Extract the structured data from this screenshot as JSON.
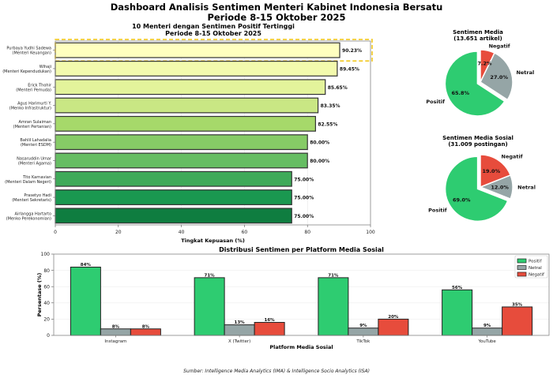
{
  "header": {
    "title_line1": "Dashboard Analisis Sentimen Menteri Kabinet Indonesia Bersatu",
    "title_line2": "Periode 8-15 Oktober 2025"
  },
  "footer": {
    "source": "Sumber: Intelligence Media Analytics (IMA) & Intelligence Socio Analytics (ISA)"
  },
  "chart_data": [
    {
      "type": "bar",
      "orientation": "horizontal",
      "title": "10 Menteri dengan Sentimen Positif Tertinggi",
      "subtitle": "Periode 8-15 Oktober 2025",
      "xlabel": "Tingkat Kepuasan (%)",
      "ylabel": "",
      "xlim": [
        0,
        100
      ],
      "xticks": [
        0,
        20,
        40,
        60,
        80,
        100
      ],
      "grid": true,
      "highlight": "Purbaya Yudhi Sadewa",
      "categories": [
        {
          "name": "Purbaya Yudhi Sadewa",
          "role": "(Menteri Keuangan)",
          "value": 90.23,
          "label": "90.23%",
          "color": "#ffffbf"
        },
        {
          "name": "Wihaji",
          "role": "(Menteri Kependudukan)",
          "value": 89.45,
          "label": "89.45%",
          "color": "#f3faad"
        },
        {
          "name": "Erick Thohir",
          "role": "(Menteri Pemuda)",
          "value": 85.65,
          "label": "85.65%",
          "color": "#e3f39b"
        },
        {
          "name": "Agus Harimurti Y.",
          "role": "(Menko Infrastruktur)",
          "value": 83.35,
          "label": "83.35%",
          "color": "#c9e784"
        },
        {
          "name": "Amran Sulaiman",
          "role": "(Menteri Pertanian)",
          "value": 82.55,
          "label": "82.55%",
          "color": "#a6d96a"
        },
        {
          "name": "Bahlil Lahadalia",
          "role": "(Menteri ESDM)",
          "value": 80.0,
          "label": "80.00%",
          "color": "#86cb66"
        },
        {
          "name": "Nasaruddin Umar",
          "role": "(Menteri Agama)",
          "value": 80.0,
          "label": "80.00%",
          "color": "#66bd63"
        },
        {
          "name": "Tito Karnavian",
          "role": "(Menteri Dalam Negeri)",
          "value": 75.0,
          "label": "75.00%",
          "color": "#3faa59"
        },
        {
          "name": "Prasetyo Hadi",
          "role": "(Menteri Sekretaris)",
          "value": 75.0,
          "label": "75.00%",
          "color": "#1a9850"
        },
        {
          "name": "Airlangga Hartarto",
          "role": "(Menko Perekonomian)",
          "value": 75.0,
          "label": "75.00%",
          "color": "#0f7d40"
        }
      ]
    },
    {
      "type": "pie",
      "title": "Sentimen Media",
      "subtitle": "(13.651 artikel)",
      "slices": [
        {
          "label": "Positif",
          "value": 65.8,
          "pct_label": "65.8%",
          "color": "#2ecc71",
          "explode": true
        },
        {
          "label": "Netral",
          "value": 27.0,
          "pct_label": "27.0%",
          "color": "#95a5a6",
          "explode": false
        },
        {
          "label": "Negatif",
          "value": 7.2,
          "pct_label": "7.2%",
          "color": "#e74c3c",
          "explode": false
        }
      ]
    },
    {
      "type": "pie",
      "title": "Sentimen Media Sosial",
      "subtitle": "(31.009 postingan)",
      "slices": [
        {
          "label": "Positif",
          "value": 69.0,
          "pct_label": "69.0%",
          "color": "#2ecc71",
          "explode": true
        },
        {
          "label": "Netral",
          "value": 12.0,
          "pct_label": "12.0%",
          "color": "#95a5a6",
          "explode": false
        },
        {
          "label": "Negatif",
          "value": 19.0,
          "pct_label": "19.0%",
          "color": "#e74c3c",
          "explode": false
        }
      ]
    },
    {
      "type": "bar",
      "orientation": "vertical-grouped",
      "title": "Distribusi Sentimen per Platform Media Sosial",
      "xlabel": "Platform Media Sosial",
      "ylabel": "Persentase (%)",
      "ylim": [
        0,
        100
      ],
      "yticks": [
        0,
        20,
        40,
        60,
        80,
        100
      ],
      "grid": true,
      "legend": "top-right",
      "categories": [
        "Instagram",
        "X (Twitter)",
        "TikTok",
        "YouTube"
      ],
      "series": [
        {
          "name": "Positif",
          "color": "#2ecc71",
          "values": [
            84,
            71,
            71,
            56
          ]
        },
        {
          "name": "Netral",
          "color": "#95a5a6",
          "values": [
            8,
            13,
            9,
            9
          ]
        },
        {
          "name": "Negatif",
          "color": "#e74c3c",
          "values": [
            8,
            16,
            20,
            35
          ]
        }
      ]
    }
  ]
}
